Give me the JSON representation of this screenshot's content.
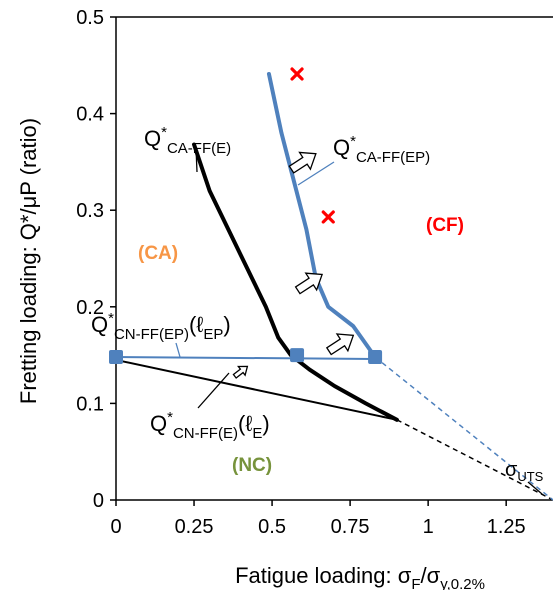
{
  "chart_data": {
    "type": "line",
    "xlabel": {
      "main": "Fatigue loading: σ",
      "sub1": "F",
      "slash": "/σ",
      "sub2": "y,0.2%"
    },
    "ylabel": "Fretting loading: Q*/μP (ratio)",
    "xlim": [
      0,
      1.4
    ],
    "ylim": [
      0,
      0.5
    ],
    "x_ticks": [
      {
        "value": 0,
        "label": "0"
      },
      {
        "value": 0.25,
        "label": "0.25"
      },
      {
        "value": 0.5,
        "label": "0.5"
      },
      {
        "value": 0.75,
        "label": "0.75"
      },
      {
        "value": 1,
        "label": "1"
      },
      {
        "value": 1.25,
        "label": "1.25"
      }
    ],
    "y_ticks": [
      {
        "value": 0,
        "label": "0"
      },
      {
        "value": 0.1,
        "label": "0.1"
      },
      {
        "value": 0.2,
        "label": "0.2"
      },
      {
        "value": 0.3,
        "label": "0.3"
      },
      {
        "value": 0.4,
        "label": "0.4"
      },
      {
        "value": 0.5,
        "label": "0.5"
      }
    ],
    "colors": {
      "black": "#000000",
      "blue": "#4f81bd",
      "red": "#ff0000",
      "orange": "#f79646",
      "green": "#77933c"
    },
    "series": [
      {
        "key": "ca_ff_e",
        "color": "#000000",
        "style": "solid-thick",
        "x": [
          0.25,
          0.3,
          0.36,
          0.42,
          0.48,
          0.52,
          0.56,
          0.62,
          0.7,
          0.8,
          0.9
        ],
        "y": [
          0.368,
          0.32,
          0.28,
          0.24,
          0.2,
          0.168,
          0.15,
          0.135,
          0.118,
          0.1,
          0.083
        ]
      },
      {
        "key": "ca_ff_ep",
        "color": "#4f81bd",
        "style": "solid-thick",
        "x": [
          0.49,
          0.53,
          0.57,
          0.61,
          0.64,
          0.68,
          0.76,
          0.83
        ],
        "y": [
          0.441,
          0.38,
          0.33,
          0.28,
          0.23,
          0.2,
          0.18,
          0.148
        ]
      },
      {
        "key": "cn_ff_ep",
        "color": "#4f81bd",
        "style": "solid-thin",
        "x": [
          0,
          0.83
        ],
        "y": [
          0.148,
          0.146
        ]
      },
      {
        "key": "cn_ff_e",
        "color": "#000000",
        "style": "solid-thin",
        "x": [
          0,
          0.9
        ],
        "y": [
          0.145,
          0.083
        ]
      },
      {
        "key": "extension_black",
        "color": "#000000",
        "style": "dashed",
        "x": [
          0.9,
          1.4
        ],
        "y": [
          0.083,
          0
        ]
      },
      {
        "key": "extension_blue",
        "color": "#4f81bd",
        "style": "dashed",
        "x": [
          0.83,
          1.4
        ],
        "y": [
          0.148,
          0
        ]
      }
    ],
    "markers_square": [
      {
        "x": 0,
        "y": 0.148
      },
      {
        "x": 0.58,
        "y": 0.15
      },
      {
        "x": 0.83,
        "y": 0.148
      }
    ],
    "markers_cross": [
      {
        "x": 0.58,
        "y": 0.441
      },
      {
        "x": 0.68,
        "y": 0.293
      }
    ],
    "arrows": [
      {
        "x": 0.6,
        "y": 0.35,
        "angle": -33,
        "size": 1.0
      },
      {
        "x": 0.62,
        "y": 0.225,
        "angle": -33,
        "size": 1.0
      },
      {
        "x": 0.72,
        "y": 0.162,
        "angle": -33,
        "size": 1.0
      },
      {
        "x": 0.4,
        "y": 0.133,
        "angle": -38,
        "size": 0.55
      }
    ],
    "annotations": {
      "ca_ff_e": {
        "main": "Q",
        "sup": "*",
        "sub": "CA-FF(E)"
      },
      "ca_ff_ep": {
        "main": "Q",
        "sup": "*",
        "sub": "CA-FF(EP)"
      },
      "cn_ff_ep": {
        "main": "Q",
        "sup": "*",
        "sub": "CN-FF(EP)",
        "tail": "(ℓ",
        "tail_sub": "EP",
        "close": ")"
      },
      "cn_ff_e": {
        "main": "Q",
        "sup": "*",
        "sub": "CN-FF(E)",
        "tail": "(ℓ",
        "tail_sub": "E",
        "close": ")"
      },
      "uts": {
        "main": "σ",
        "sub": "UTS"
      }
    },
    "regions": [
      {
        "label": "(CA)",
        "color": "#f79646"
      },
      {
        "label": "(CF)",
        "color": "#ff0000"
      },
      {
        "label": "(NC)",
        "color": "#77933c"
      }
    ]
  }
}
